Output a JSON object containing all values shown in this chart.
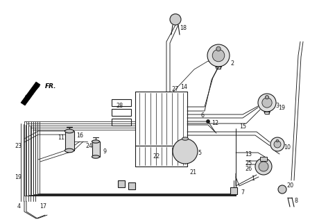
{
  "bg_color": "#ffffff",
  "line_color": "#1a1a1a",
  "fig_width": 4.47,
  "fig_height": 3.2,
  "dpi": 100
}
